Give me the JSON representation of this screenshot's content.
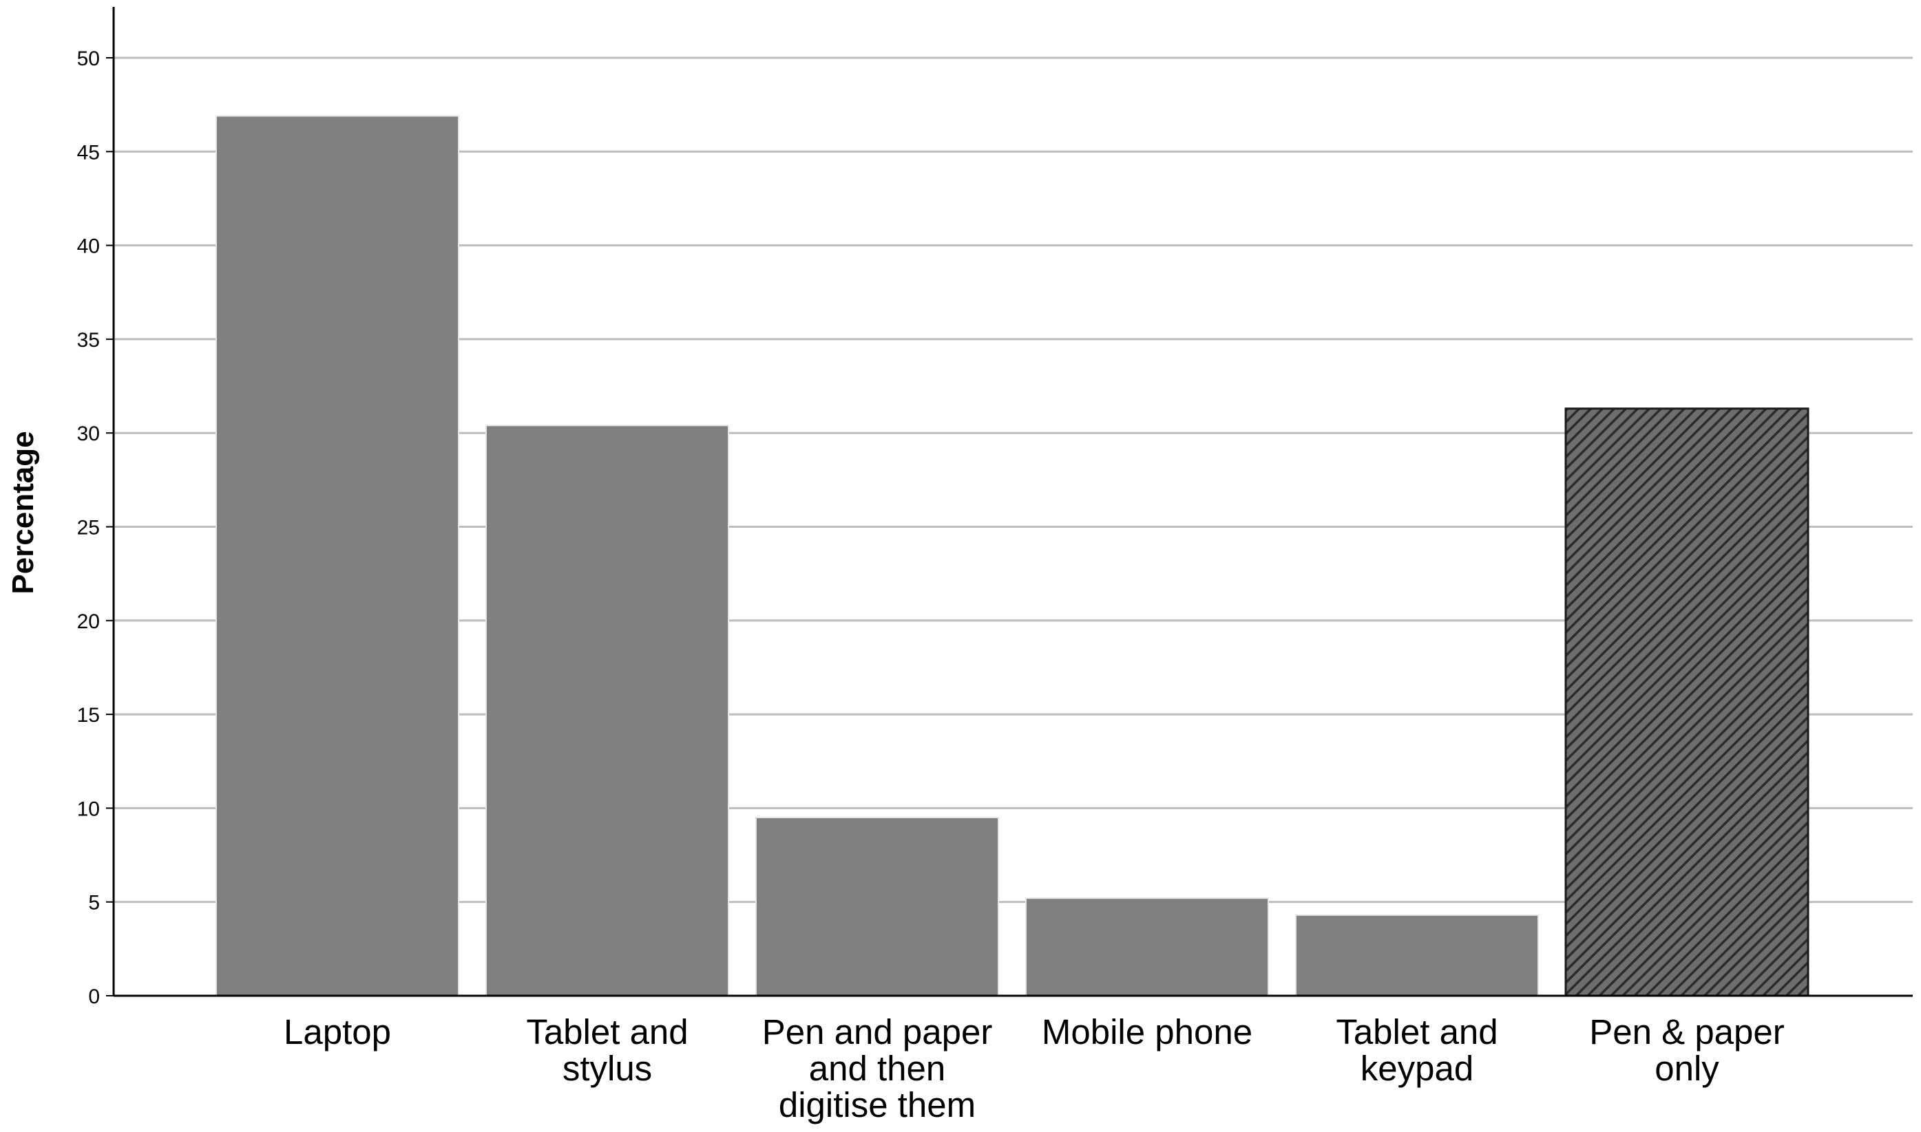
{
  "chart_data": {
    "type": "bar",
    "ylabel": "Percentage",
    "ylim": [
      0,
      52.5
    ],
    "yticks": [
      0,
      5,
      10,
      15,
      20,
      25,
      30,
      35,
      40,
      45,
      50
    ],
    "grid": true,
    "categories": [
      [
        "Laptop"
      ],
      [
        "Tablet and",
        "stylus"
      ],
      [
        "Pen and paper",
        "and then",
        "digitise them"
      ],
      [
        "Mobile phone"
      ],
      [
        "Tablet and",
        "keypad"
      ],
      [
        "Pen & paper",
        "only"
      ]
    ],
    "values": [
      46.9,
      30.4,
      9.5,
      5.2,
      4.3,
      31.3
    ],
    "colors": {
      "bar": "#7f7f7f",
      "bar_edge": "#e6e6e6",
      "hatched_bar_bg": "#6e6e6e",
      "hatch": "#2b2b2b",
      "grid": "#bdbdbd",
      "axis": "#000000"
    },
    "hatched": [
      false,
      false,
      false,
      false,
      false,
      true
    ]
  }
}
